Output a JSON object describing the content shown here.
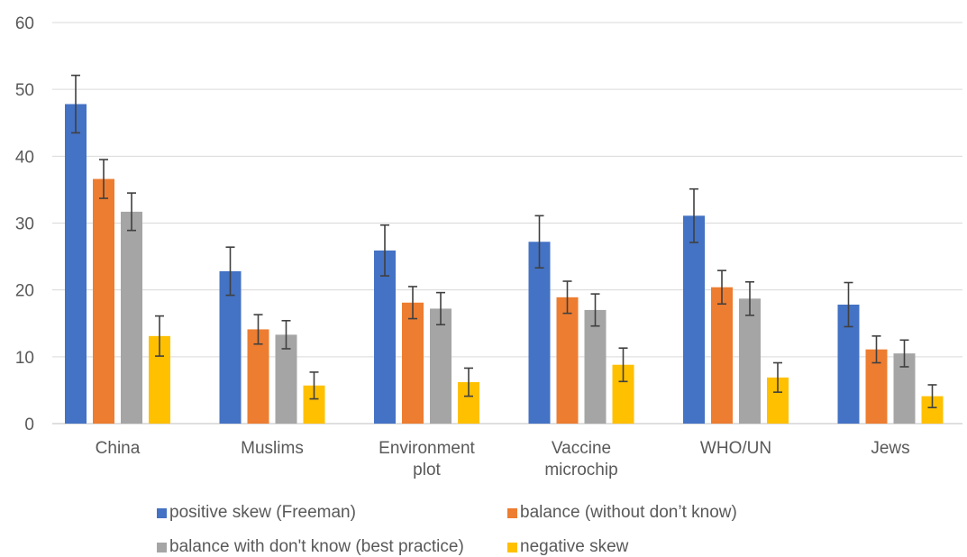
{
  "chart_data": {
    "type": "bar",
    "title": "",
    "xlabel": "",
    "ylabel": "",
    "ylim": [
      0,
      60
    ],
    "yticks": [
      0,
      10,
      20,
      30,
      40,
      50,
      60
    ],
    "grid": true,
    "legend_position": "bottom",
    "categories": [
      [
        "China"
      ],
      [
        "Muslims"
      ],
      [
        "Environment",
        "plot"
      ],
      [
        "Vaccine",
        "microchip"
      ],
      [
        "WHO/UN"
      ],
      [
        "Jews"
      ]
    ],
    "series": [
      {
        "name": "positive skew (Freeman)",
        "color": "#4472c4",
        "values": [
          47.8,
          22.8,
          25.9,
          27.2,
          31.1,
          17.8
        ],
        "error": [
          4.3,
          3.6,
          3.8,
          3.9,
          4.0,
          3.3
        ]
      },
      {
        "name": "balance (without don’t know)",
        "color": "#ed7d31",
        "values": [
          36.6,
          14.1,
          18.1,
          18.9,
          20.4,
          11.1
        ],
        "error": [
          2.9,
          2.2,
          2.4,
          2.4,
          2.5,
          2.0
        ]
      },
      {
        "name": "balance with don't know (best practice)",
        "color": "#a5a5a5",
        "values": [
          31.7,
          13.3,
          17.2,
          17.0,
          18.7,
          10.5
        ],
        "error": [
          2.8,
          2.1,
          2.4,
          2.4,
          2.5,
          2.0
        ]
      },
      {
        "name": "negative skew",
        "color": "#ffc000",
        "values": [
          13.1,
          5.7,
          6.2,
          8.8,
          6.9,
          4.1
        ],
        "error": [
          3.0,
          2.0,
          2.1,
          2.5,
          2.2,
          1.7
        ]
      }
    ]
  }
}
